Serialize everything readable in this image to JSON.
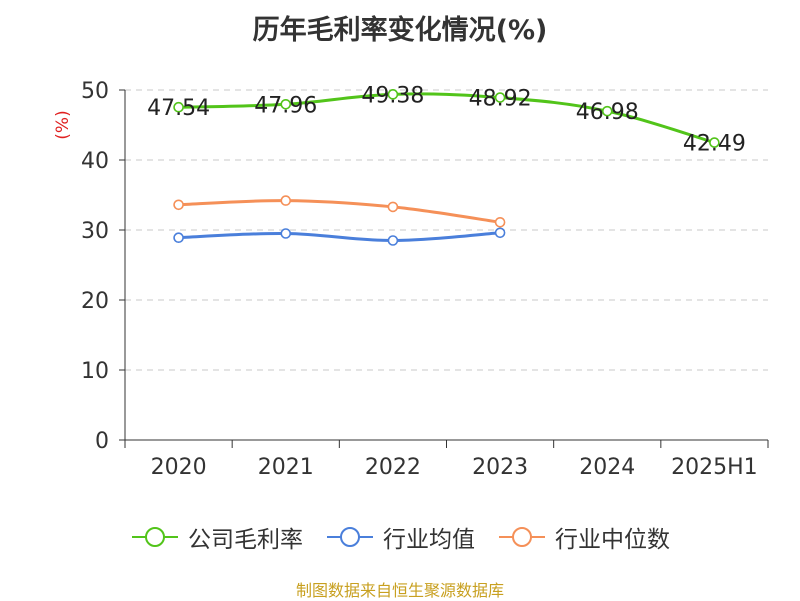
{
  "chart_data": {
    "type": "line",
    "title": "历年毛利率变化情况(%)",
    "ylabel": "(%)",
    "xlabel": "",
    "categories": [
      "2020",
      "2021",
      "2022",
      "2023",
      "2024",
      "2025H1"
    ],
    "ylim": [
      0,
      50
    ],
    "yticks": [
      0,
      10,
      20,
      30,
      40,
      50
    ],
    "grid": true,
    "legend_position": "bottom",
    "series": [
      {
        "name": "公司毛利率",
        "color": "#52c41a",
        "values": [
          47.54,
          47.96,
          49.38,
          48.92,
          46.98,
          42.49
        ],
        "show_labels": true
      },
      {
        "name": "行业均值",
        "color": "#4a7fdb",
        "values": [
          28.9,
          29.5,
          28.5,
          29.6,
          null,
          null
        ],
        "show_labels": false
      },
      {
        "name": "行业中位数",
        "color": "#f59058",
        "values": [
          33.6,
          34.2,
          33.3,
          31.1,
          null,
          null
        ],
        "show_labels": false
      }
    ]
  },
  "footer": {
    "source": "制图数据来自恒生聚源数据库"
  }
}
